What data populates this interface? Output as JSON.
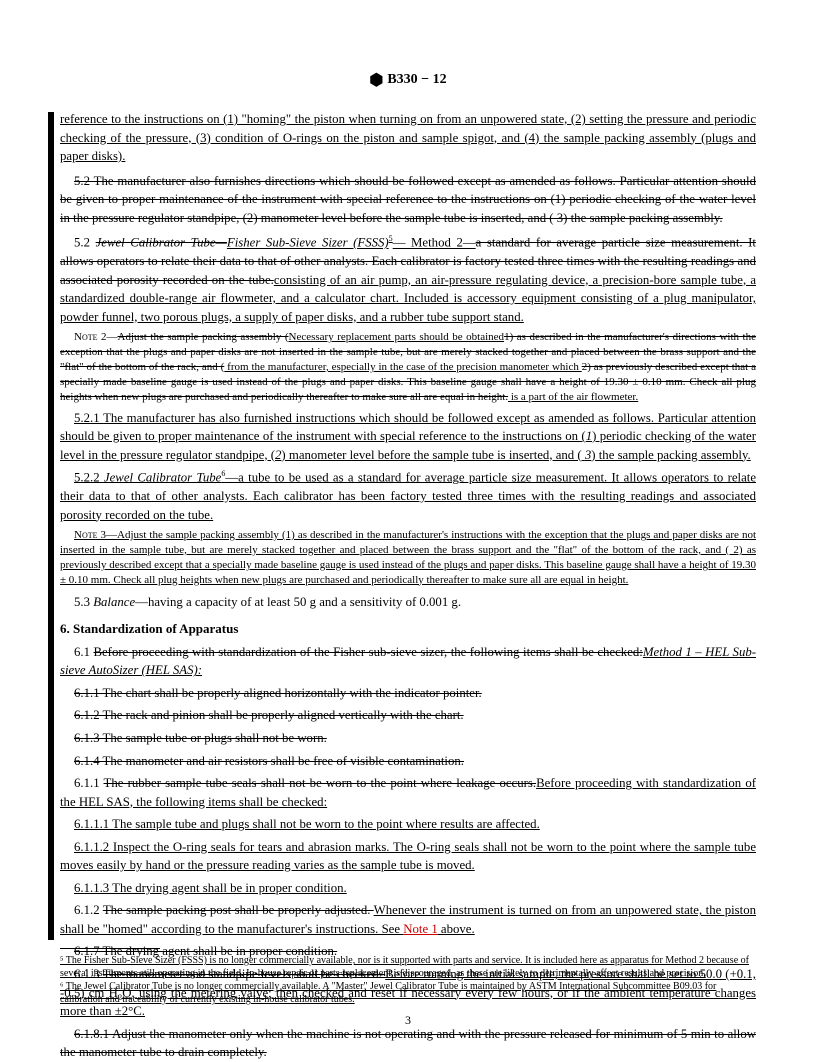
{
  "header": "B330 − 12",
  "paragraphs": {
    "p1": "reference to the instructions on (1) \"homing\" the piston when turning on from an unpowered state, (2) setting the pressure and periodic checking of the pressure, (3) condition of O-rings on the piston and sample spigot, and (4) the sample packing assembly (plugs and paper disks).",
    "p2_strike": "5.2 The manufacturer also furnishes directions which should be followed except as amended as follows. Particular attention should be given to proper maintenance of the instrument with special reference to the instructions on (1) periodic checking of the water level in the pressure regulator standpipe, (2) manometer level before the sample tube is inserted, and ( 3) the sample packing assembly.",
    "p3_num": "5.2",
    "p3_strike1": "Jewel Calibrator Tube—",
    "p3_ul1": "Fisher Sub-Sieve Sizer (FSSS)",
    "p3_sup": "5",
    "p3_ul2": "— Method 2—",
    "p3_strike2": "a standard for average particle size measurement. It allows operators to relate their data to that of other analysts. Each calibrator is factory tested three times with the resulting readings and associated porosity recorded on the tube.",
    "p3_ul3": "consisting of an air pump, an air-pressure regulating device, a precision-bore sample tube, a standardized double-range air flowmeter, and a calculator chart. Included is accessory equipment consisting of a plug manipulator, powder funnel, two porous plugs, a supply of paper disks, and a rubber tube support stand.",
    "note2_label": "Note 2—",
    "note2_strike1": "Adjust the sample packing assembly (",
    "note2_ul1": "Necessary replacement parts should be obtained",
    "note2_strike2": "1) as described in the manufacturer's directions with the exception that the plugs and paper disks are not inserted in the sample tube, but are merely stacked together and placed between the brass support and the \"flat\" of the bottom of the rack, and (",
    "note2_ul2": " from the manufacturer, especially in the case of the precision manometer which ",
    "note2_strike3": "2) as previously described except that a specially made baseline gauge is used instead of the plugs and paper disks. This baseline gauge shall have a height of 19.30 ± 0.10 mm. Check all plug heights when new plugs are purchased and periodically thereafter to make sure all are equal in height.",
    "note2_ul3": " is a part of the air flowmeter.",
    "p521label": "5.2.1 ",
    "p521": "The manufacturer has also furnished instructions which should be followed except as amended as follows. Particular attention should be given to proper maintenance of the instrument with special reference to the instructions on (",
    "p521_i1": "1",
    "p521_b": ") periodic checking of the water level in the pressure regulator standpipe, (",
    "p521_i2": "2",
    "p521_c": ") manometer level before the sample tube is inserted, and ( ",
    "p521_i3": "3",
    "p521_d": ") the sample packing assembly.",
    "p522label": "5.2.2 ",
    "p522_i": "Jewel Calibrator Tube",
    "p522_sup": "6",
    "p522_text": "—a tube to be used as a standard for average particle size measurement. It allows operators to relate their data to that of other analysts. Each calibrator has been factory tested three times with the resulting readings and associated porosity recorded on the tube.",
    "note3_label": "Note 3—",
    "note3": "Adjust the sample packing assembly (1) as described in the manufacturer's instructions with the exception that the plugs and paper disks are not inserted in the sample tube, but are merely stacked together and placed between the brass support and the \"flat\" of the bottom of the rack, and ( 2) as previously described except that a specially made baseline gauge is used instead of the plugs and paper disks. This baseline gauge shall have a height of 19.30 ± 0.10 mm. Check all plug heights when new plugs are purchased and periodically thereafter to make sure all are equal in height.",
    "p53label": "5.3 ",
    "p53_i": "Balance",
    "p53": "—having a capacity of at least 50 g and a sensitivity of 0.001 g.",
    "sec6": "6. Standardization of Apparatus",
    "p61label": "6.1 ",
    "p61_strike": "Before proceeding with standardization of the Fisher sub-sieve sizer, the following items shall be checked:",
    "p61_ul": "Method 1 – HEL Sub-sieve AutoSizer (HEL SAS):",
    "p611": "6.1.1 The chart shall be properly aligned horizontally with the indicator pointer.",
    "p612": "6.1.2 The rack and pinion shall be properly aligned vertically with the chart.",
    "p613": "6.1.3 The sample tube or plugs shall not be worn.",
    "p614": "6.1.4 The manometer and air resistors shall be free of visible contamination.",
    "p611new_a": "6.1.1 ",
    "p611new_strike": "The rubber sample tube seals shall not be worn to the point where leakage occurs.",
    "p611new_ul": "Before proceeding with standardization of the HEL SAS, the following items shall be checked:",
    "p6111": "6.1.1.1 The sample tube and plugs shall not be worn to the point where results are affected.",
    "p6112": "6.1.1.2 Inspect the O-ring seals for tears and abrasion marks. The O-ring seals shall not be worn to the point where the sample tube moves easily by hand or the pressure reading varies as the sample tube is moved.",
    "p6113": "6.1.1.3 The drying agent shall be in proper condition.",
    "p612new_a": "6.1.2 ",
    "p612new_strike": "The sample packing post shall be properly adjusted. ",
    "p612new_ul": "Whenever the instrument is turned on from an unpowered state, the piston shall be \"homed\" according to the manufacturer's instructions. See ",
    "p612new_link": "Note 1",
    "p612new_ul2": " above.",
    "p617_strike": "6.1.7 The drying agent shall be in proper condition.",
    "p613new_a": "6.1.3 ",
    "p613new_strike": "The manometer and standpipe levels shall be checked. ",
    "p613new_ul": "Before running the initial sample, the pressure shall be set to 50.0 (+0.1, -0.5) cm H₂O, using the metering valve; then checked and reset if necessary every few hours, or if the ambient temperature changes more than ±2°C.",
    "p6181": "6.1.8.1 Adjust the manometer only when the machine is not operating and with the pressure released for minimum of 5 min to allow the manometer tube to drain completely."
  },
  "footnotes": {
    "f5": "⁵ The Fisher Sub-Sieve Sizer (FSSS) is no longer commercially available, nor is it supported with parts and service. It is included here as apparatus for Method 2 because of several instruments still operating in the field. In-house repair or parts replacement is discouraged, as these are likely to detrimentally affect results and precision.",
    "f6": "⁶ The Jewel Calibrator Tube is no longer commercially available. A \"Master\" Jewel Calibrator Tube is maintained by ASTM International Subcommittee B09.03 for calibration and traceability of currently existing in-house calibrator tubes."
  },
  "pageNumber": "3"
}
